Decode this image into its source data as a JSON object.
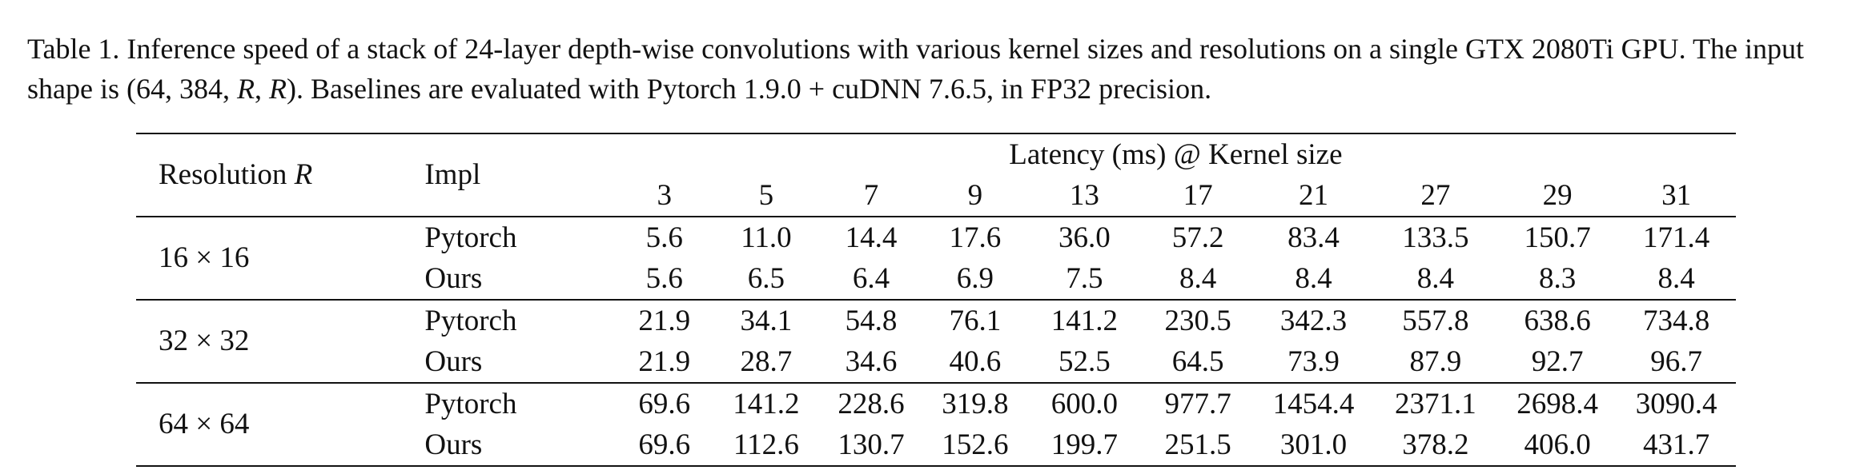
{
  "caption": {
    "part1": "Table 1. Inference speed of a stack of 24-layer depth-wise convolutions with various kernel sizes and resolutions on a single GTX 2080Ti GPU. The input shape is (64, 384, ",
    "var_r1": "R",
    "sep": ", ",
    "var_r2": "R",
    "part2": "). Baselines are evaluated with Pytorch 1.9.0 + cuDNN 7.6.5, in FP32 precision."
  },
  "table": {
    "header": {
      "resolution_label": "Resolution ",
      "resolution_var": "R",
      "impl_label": "Impl",
      "group_label": "Latency (ms) @ Kernel size",
      "kernel_sizes": [
        "3",
        "5",
        "7",
        "9",
        "13",
        "17",
        "21",
        "27",
        "29",
        "31"
      ]
    },
    "groups": [
      {
        "resolution": "16 × 16",
        "rows": [
          {
            "impl": "Pytorch",
            "values": [
              "5.6",
              "11.0",
              "14.4",
              "17.6",
              "36.0",
              "57.2",
              "83.4",
              "133.5",
              "150.7",
              "171.4"
            ]
          },
          {
            "impl": "Ours",
            "values": [
              "5.6",
              "6.5",
              "6.4",
              "6.9",
              "7.5",
              "8.4",
              "8.4",
              "8.4",
              "8.3",
              "8.4"
            ]
          }
        ]
      },
      {
        "resolution": "32 × 32",
        "rows": [
          {
            "impl": "Pytorch",
            "values": [
              "21.9",
              "34.1",
              "54.8",
              "76.1",
              "141.2",
              "230.5",
              "342.3",
              "557.8",
              "638.6",
              "734.8"
            ]
          },
          {
            "impl": "Ours",
            "values": [
              "21.9",
              "28.7",
              "34.6",
              "40.6",
              "52.5",
              "64.5",
              "73.9",
              "87.9",
              "92.7",
              "96.7"
            ]
          }
        ]
      },
      {
        "resolution": "64 × 64",
        "rows": [
          {
            "impl": "Pytorch",
            "values": [
              "69.6",
              "141.2",
              "228.6",
              "319.8",
              "600.0",
              "977.7",
              "1454.4",
              "2371.1",
              "2698.4",
              "3090.4"
            ]
          },
          {
            "impl": "Ours",
            "values": [
              "69.6",
              "112.6",
              "130.7",
              "152.6",
              "199.7",
              "251.5",
              "301.0",
              "378.2",
              "406.0",
              "431.7"
            ]
          }
        ]
      }
    ]
  }
}
